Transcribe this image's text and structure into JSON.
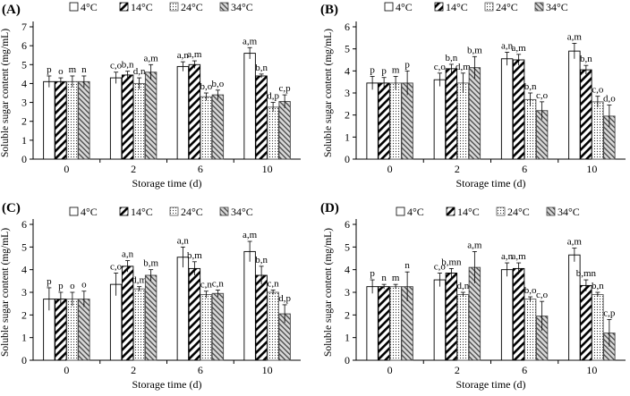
{
  "chart_data": [
    {
      "type": "bar",
      "panel_label": "(A)",
      "xlabel": "Storage time (d)",
      "ylabel": "Soluble sugar content (mg/mL)",
      "ylim": [
        0,
        7
      ],
      "yticks": [
        "0",
        "1",
        "2",
        "3",
        "4",
        "5",
        "6",
        "7"
      ],
      "categories": [
        "0",
        "2",
        "6",
        "10"
      ],
      "legend": [
        "4°C",
        "14°C",
        "24°C",
        "34°C"
      ],
      "series": [
        {
          "name": "4°C",
          "values": [
            4.1,
            4.3,
            4.9,
            5.6
          ],
          "errors": [
            0.3,
            0.3,
            0.25,
            0.3
          ]
        },
        {
          "name": "14°C",
          "values": [
            4.1,
            4.45,
            5.0,
            4.4
          ],
          "errors": [
            0.2,
            0.2,
            0.2,
            0.1
          ]
        },
        {
          "name": "24°C",
          "values": [
            4.1,
            4.0,
            3.3,
            2.75
          ],
          "errors": [
            0.3,
            0.3,
            0.2,
            0.25
          ]
        },
        {
          "name": "34°C",
          "values": [
            4.1,
            4.6,
            3.4,
            3.05
          ],
          "errors": [
            0.3,
            0.4,
            0.25,
            0.35
          ]
        }
      ],
      "annotations": [
        [
          "p",
          "o",
          "m",
          "n"
        ],
        [
          "c,o",
          "b,n",
          "d,n",
          "a,m"
        ],
        [
          "a,n",
          "a,m",
          "b,o",
          "b,o"
        ],
        [
          "a,m",
          "b,n",
          "d,p",
          "c,p"
        ]
      ]
    },
    {
      "type": "bar",
      "panel_label": "(B)",
      "xlabel": "Storage time (d)",
      "ylabel": "Soluble sugar content (mg/mL)",
      "ylim": [
        0,
        6
      ],
      "yticks": [
        "0",
        "1",
        "2",
        "3",
        "4",
        "5",
        "6"
      ],
      "categories": [
        "0",
        "2",
        "6",
        "10"
      ],
      "legend": [
        "4°C",
        "14°C",
        "24°C",
        "34°C"
      ],
      "series": [
        {
          "name": "4°C",
          "values": [
            3.45,
            3.6,
            4.55,
            4.9
          ],
          "errors": [
            0.3,
            0.3,
            0.3,
            0.35
          ]
        },
        {
          "name": "14°C",
          "values": [
            3.45,
            4.1,
            4.5,
            4.05
          ],
          "errors": [
            0.25,
            0.2,
            0.25,
            0.2
          ]
        },
        {
          "name": "24°C",
          "values": [
            3.45,
            3.45,
            2.7,
            2.6
          ],
          "errors": [
            0.3,
            0.45,
            0.3,
            0.25
          ]
        },
        {
          "name": "34°C",
          "values": [
            3.45,
            4.15,
            2.2,
            1.95
          ],
          "errors": [
            0.55,
            0.5,
            0.4,
            0.5
          ]
        }
      ],
      "annotations": [
        [
          "p",
          "p",
          "m",
          "p"
        ],
        [
          "c,o",
          "b,n",
          "d,m",
          "b,m"
        ],
        [
          "a,n",
          "a,m",
          "b,n",
          "c,o"
        ],
        [
          "a,m",
          "b,n",
          "c,o",
          "d,o"
        ]
      ]
    },
    {
      "type": "bar",
      "panel_label": "(C)",
      "xlabel": "Storage time (d)",
      "ylabel": "Soluble sugar content (mg/mL)",
      "ylim": [
        0,
        6
      ],
      "yticks": [
        "0",
        "1",
        "2",
        "3",
        "4",
        "5",
        "6"
      ],
      "categories": [
        "0",
        "2",
        "6",
        "10"
      ],
      "legend": [
        "4°C",
        "14°C",
        "24°C",
        "34°C"
      ],
      "series": [
        {
          "name": "4°C",
          "values": [
            2.7,
            3.35,
            4.55,
            4.8
          ],
          "errors": [
            0.5,
            0.5,
            0.45,
            0.45
          ]
        },
        {
          "name": "14°C",
          "values": [
            2.7,
            4.15,
            4.05,
            3.75
          ],
          "errors": [
            0.3,
            0.25,
            0.3,
            0.4
          ]
        },
        {
          "name": "24°C",
          "values": [
            2.7,
            3.15,
            2.9,
            3.0
          ],
          "errors": [
            0.3,
            0.1,
            0.15,
            0.1
          ]
        },
        {
          "name": "34°C",
          "values": [
            2.7,
            3.75,
            2.95,
            2.05
          ],
          "errors": [
            0.35,
            0.25,
            0.15,
            0.4
          ]
        }
      ],
      "annotations": [
        [
          "p",
          "p",
          "o",
          "o"
        ],
        [
          "c,o",
          "a,n",
          "d,m",
          "b,m"
        ],
        [
          "a,n",
          "b,m",
          "c,n",
          "c,n"
        ],
        [
          "a,m",
          "b,n",
          "c,n",
          "d,p"
        ]
      ]
    },
    {
      "type": "bar",
      "panel_label": "(D)",
      "xlabel": "Storage time (d)",
      "ylabel": "Soluble sugar content (mg/mL)",
      "ylim": [
        0,
        6
      ],
      "yticks": [
        "0",
        "1",
        "2",
        "3",
        "4",
        "5",
        "6"
      ],
      "categories": [
        "0",
        "2",
        "6",
        "10"
      ],
      "legend": [
        "4°C",
        "14°C",
        "24°C",
        "34°C"
      ],
      "series": [
        {
          "name": "4°C",
          "values": [
            3.25,
            3.55,
            4.0,
            4.65
          ],
          "errors": [
            0.3,
            0.3,
            0.3,
            0.3
          ]
        },
        {
          "name": "14°C",
          "values": [
            3.25,
            3.85,
            4.05,
            3.3
          ],
          "errors": [
            0.1,
            0.2,
            0.25,
            0.25
          ]
        },
        {
          "name": "24°C",
          "values": [
            3.25,
            2.9,
            2.7,
            2.9
          ],
          "errors": [
            0.1,
            0.1,
            0.1,
            0.1
          ]
        },
        {
          "name": "34°C",
          "values": [
            3.25,
            4.1,
            1.95,
            1.2
          ],
          "errors": [
            0.65,
            0.7,
            0.65,
            0.6
          ]
        }
      ],
      "annotations": [
        [
          "p",
          "n",
          "m",
          "n"
        ],
        [
          "c,o",
          "b,mn",
          "d,n",
          "a,m"
        ],
        [
          "a,n",
          "a,m",
          "b,o",
          "c,o"
        ],
        [
          "a,m",
          "b,mn",
          "b,n",
          "c,p"
        ]
      ]
    }
  ]
}
